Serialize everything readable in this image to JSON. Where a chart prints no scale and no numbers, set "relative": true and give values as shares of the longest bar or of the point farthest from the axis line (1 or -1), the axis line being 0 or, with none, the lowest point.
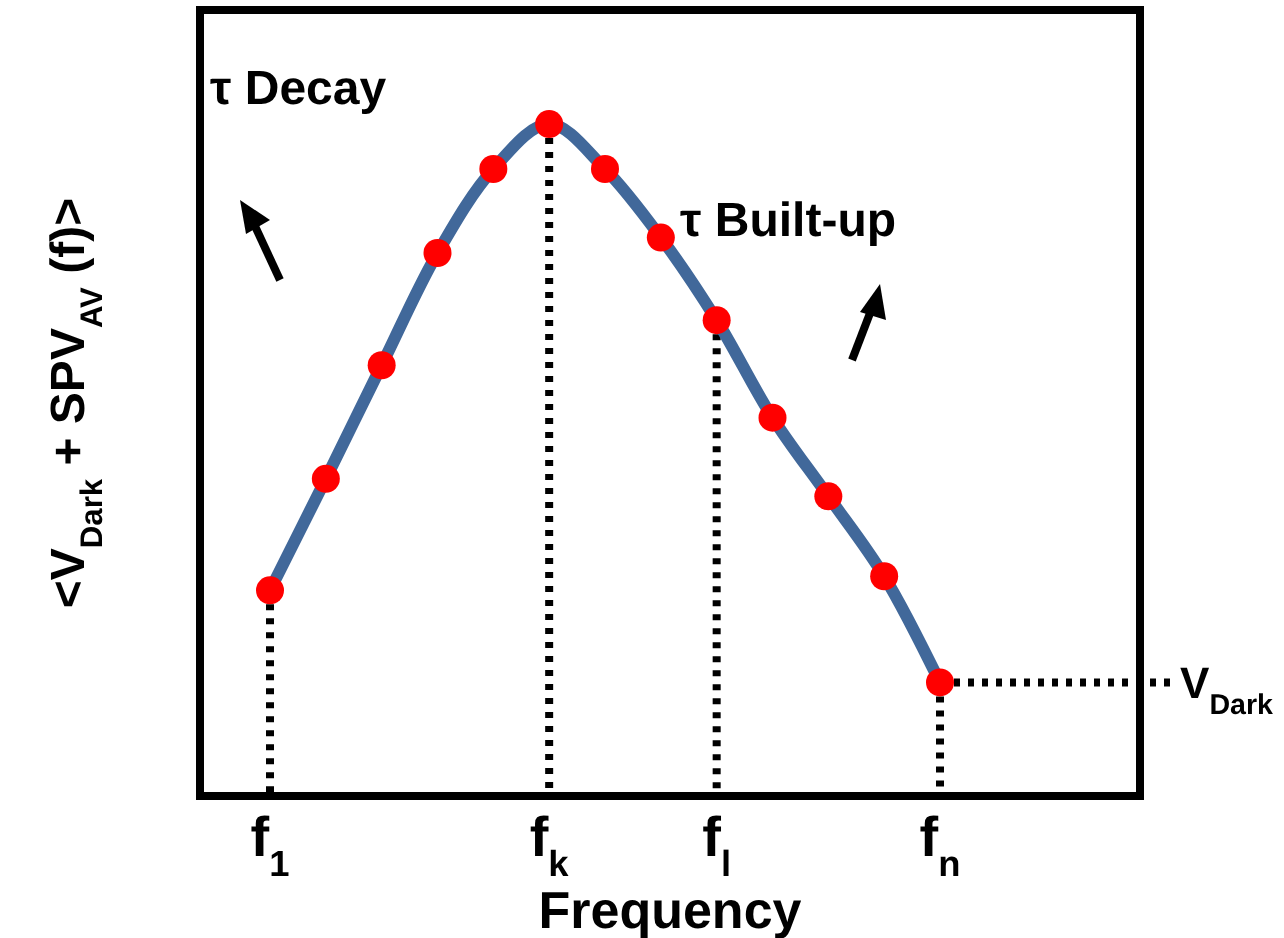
{
  "chart_data": {
    "type": "line",
    "relative": true,
    "xlabel": "Frequency",
    "ylabel": "<V$_{Dark}$ + SPV$_{AV}$ (f)>",
    "categories": [
      "f$_{1}$",
      null,
      null,
      null,
      null,
      "f$_{k}$",
      null,
      null,
      "f$_{l}$",
      null,
      null,
      null,
      "f$_{n}$"
    ],
    "series": [
      {
        "color": "#41689a",
        "colors": [
          "#ff0000",
          "#ff0000",
          "#ff0000",
          "#ff0000",
          "#ff0000",
          "#ff0000",
          "#ff0000",
          "#ff0000",
          "#ff0000",
          "#ff0000",
          "#ff0000",
          "#ff0000",
          "#ff0000"
        ],
        "values": [
          0.306,
          0.472,
          0.641,
          0.808,
          0.933,
          1,
          0.933,
          0.831,
          0.708,
          0.563,
          0.446,
          0.327,
          0.169
        ]
      }
    ],
    "ref_lines": [
      {
        "axis": "y",
        "value": 0.169,
        "label": "V$_{Dark}$",
        "line_style": "dotted"
      },
      {
        "axis": "x",
        "value": "f$_{1}$",
        "line_style": "dotted"
      },
      {
        "axis": "x",
        "value": "f$_{k}$",
        "line_style": "dotted"
      },
      {
        "axis": "x",
        "value": "f$_{l}$",
        "line_style": "dotted"
      },
      {
        "axis": "x",
        "value": "f$_{n}$",
        "line_style": "dotted"
      }
    ],
    "annotations": [
      "τ Decay",
      "τ Built-up"
    ],
    "marker": "circle",
    "line_style": "solid"
  }
}
